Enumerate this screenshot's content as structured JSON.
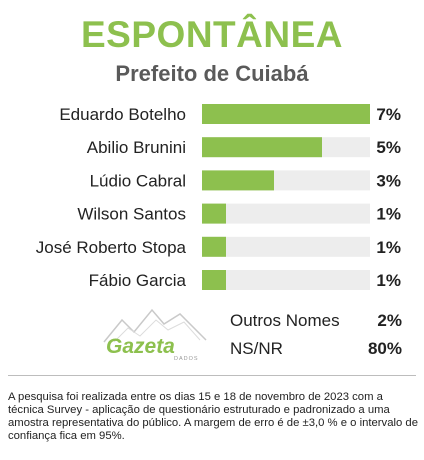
{
  "header": {
    "title": "ESPONTÂNEA",
    "subtitle": "Prefeito de Cuiabá"
  },
  "chart_data": {
    "type": "bar",
    "orientation": "horizontal",
    "categories": [
      "Eduardo Botelho",
      "Abilio Brunini",
      "Lúdio Cabral",
      "Wilson Santos",
      "José Roberto Stopa",
      "Fábio Garcia"
    ],
    "values": [
      7,
      5,
      3,
      1,
      1,
      1
    ],
    "value_labels": [
      "7%",
      "5%",
      "3%",
      "1%",
      "1%",
      "1%"
    ],
    "xlim": [
      0,
      7
    ],
    "grid": false,
    "bar_color": "#8dc04e",
    "track_color": "#ededed"
  },
  "others": [
    {
      "label": "Outros Nomes",
      "value": "2%"
    },
    {
      "label": "NS/NR",
      "value": "80%"
    }
  ],
  "logo": {
    "name": "Gazeta",
    "tagline": "DADOS"
  },
  "footnote": "A pesquisa foi realizada entre os dias 15 e 18 de novembro de 2023 com a técnica Survey - aplicação de questionário estruturado e padronizado a uma amostra representativa do público. A margem de erro é de  ±3,0 % e o intervalo de confiança fica em 95%."
}
